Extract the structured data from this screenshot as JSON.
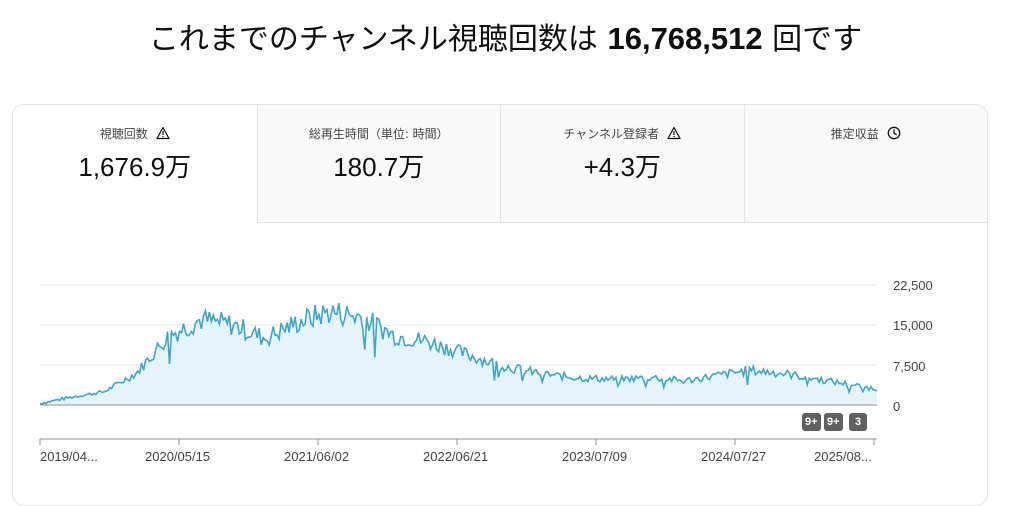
{
  "headline": {
    "prefix": "これまでのチャンネル視聴回数は ",
    "total": "16,768,512",
    "suffix": " 回です"
  },
  "tabs": [
    {
      "label": "視聴回数",
      "value": "1,676.9万",
      "icon": "warning-icon",
      "active": true
    },
    {
      "label": "総再生時間（単位: 時間）",
      "value": "180.7万",
      "icon": "",
      "active": false
    },
    {
      "label": "チャンネル登録者",
      "value": "+4.3万",
      "icon": "warning-icon",
      "active": false
    },
    {
      "label": "推定収益",
      "value": "",
      "icon": "clock-icon",
      "active": false
    }
  ],
  "badges": [
    "9+",
    "9+",
    "3"
  ],
  "chart_data": {
    "type": "area",
    "series": [
      {
        "values_description_only_in_script": true
      }
    ],
    "x_ticks": [
      "2019/04...",
      "2020/05/15",
      "2021/06/02",
      "2022/06/21",
      "2023/07/09",
      "2024/07/27",
      "2025/08..."
    ],
    "y_ticks": [
      "22,500",
      "15,000",
      "7,500",
      "0"
    ],
    "ylim": [
      0,
      22500
    ],
    "x": [
      "2019-04",
      "2019-08",
      "2019-12",
      "2020-03",
      "2020-05",
      "2020-08",
      "2020-11",
      "2021-02",
      "2021-04",
      "2021-06",
      "2021-08",
      "2021-10",
      "2021-12",
      "2022-03",
      "2022-06",
      "2022-09",
      "2022-12",
      "2023-03",
      "2023-07",
      "2023-10",
      "2024-01",
      "2024-04",
      "2024-07",
      "2024-10",
      "2025-01",
      "2025-04",
      "2025-08"
    ],
    "values": [
      300,
      1500,
      2500,
      6000,
      13000,
      16000,
      15000,
      12500,
      15500,
      17500,
      16500,
      13000,
      12000,
      10000,
      8000,
      6500,
      5500,
      5000,
      4800,
      5200,
      4500,
      5500,
      6500,
      6000,
      5000,
      4000,
      3000
    ],
    "color": "#3ea6c9",
    "fill": "#e6f4f9",
    "grid": true
  }
}
